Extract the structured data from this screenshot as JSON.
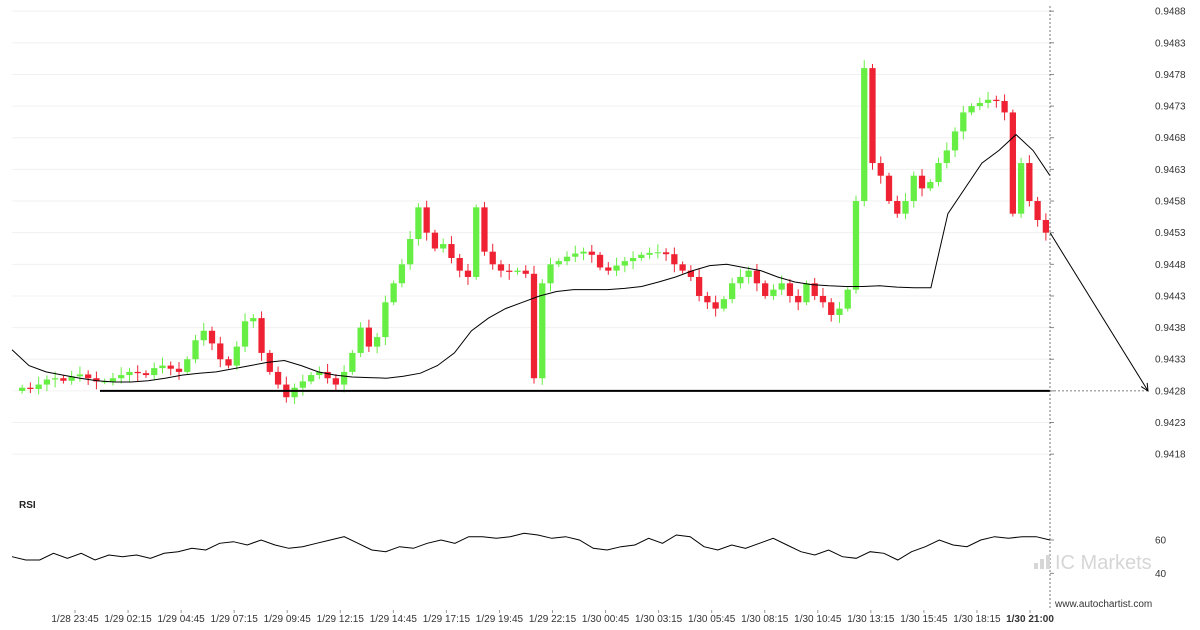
{
  "chart_data": [
    {
      "type": "candlestick",
      "title": "",
      "ylim": [
        0.94155,
        0.94885
      ],
      "y_ticks": [
        "0.9488",
        "0.9483",
        "0.9478",
        "0.9473",
        "0.9468",
        "0.9463",
        "0.9458",
        "0.9453",
        "0.9448",
        "0.9443",
        "0.9438",
        "0.9433",
        "0.9428",
        "0.9423",
        "0.9418"
      ],
      "x_ticks": [
        "1/28 23:45",
        "1/29 02:15",
        "1/29 04:45",
        "1/29 07:15",
        "1/29 09:45",
        "1/29 12:15",
        "1/29 14:45",
        "1/29 17:15",
        "1/29 19:45",
        "1/29 22:15",
        "1/30 00:45",
        "1/30 03:15",
        "1/30 05:45",
        "1/30 08:15",
        "1/30 10:45",
        "1/30 13:15",
        "1/30 15:45",
        "1/30 18:15",
        "1/30 21:00"
      ],
      "series": [
        {
          "kind": "close",
          "values": [
            0.94285,
            0.94283,
            0.9429,
            0.94298,
            0.943,
            0.94296,
            0.94303,
            0.94306,
            0.943,
            0.94295,
            0.94295,
            0.943,
            0.94305,
            0.9431,
            0.94308,
            0.94305,
            0.94316,
            0.9432,
            0.94315,
            0.9431,
            0.9433,
            0.9436,
            0.94375,
            0.94355,
            0.9433,
            0.9432,
            0.9435,
            0.9439,
            0.94395,
            0.9434,
            0.9431,
            0.9429,
            0.9427,
            0.94285,
            0.94295,
            0.94305,
            0.9431,
            0.943,
            0.9429,
            0.9431,
            0.9434,
            0.9438,
            0.9435,
            0.94365,
            0.9442,
            0.9445,
            0.9448,
            0.9452,
            0.9457,
            0.9453,
            0.94505,
            0.94512,
            0.9449,
            0.9447,
            0.9446,
            0.9457,
            0.945,
            0.9448,
            0.9447,
            0.94468,
            0.9447,
            0.94465,
            0.943,
            0.9445,
            0.9448,
            0.94485,
            0.94492,
            0.94497,
            0.945,
            0.94495,
            0.94475,
            0.9447,
            0.94478,
            0.94485,
            0.9449,
            0.94495,
            0.94498,
            0.94499,
            0.94496,
            0.9448,
            0.9447,
            0.9446,
            0.9443,
            0.9442,
            0.9441,
            0.94425,
            0.9445,
            0.9446,
            0.9447,
            0.9445,
            0.9443,
            0.9444,
            0.9445,
            0.9443,
            0.9442,
            0.9445,
            0.9443,
            0.9442,
            0.944,
            0.9441,
            0.9444,
            0.9458,
            0.9479,
            0.9464,
            0.9462,
            0.9458,
            0.9456,
            0.9458,
            0.9462,
            0.946,
            0.9461,
            0.9464,
            0.9466,
            0.9469,
            0.9472,
            0.9473,
            0.94735,
            0.9474,
            0.94738,
            0.9472,
            0.9456,
            0.9464,
            0.9458,
            0.9455,
            0.9453
          ]
        },
        {
          "kind": "moving_average",
          "values": [
            0.94345,
            0.9432,
            0.9431,
            0.94305,
            0.943,
            0.94296,
            0.94294,
            0.94294,
            0.94296,
            0.943,
            0.94305,
            0.94308,
            0.9431,
            0.94315,
            0.9432,
            0.94325,
            0.94328,
            0.9432,
            0.9431,
            0.94305,
            0.94302,
            0.94301,
            0.943,
            0.94303,
            0.94308,
            0.9432,
            0.9434,
            0.94375,
            0.94395,
            0.9441,
            0.9442,
            0.9443,
            0.94437,
            0.9444,
            0.9444,
            0.9444,
            0.94442,
            0.94445,
            0.94452,
            0.9446,
            0.9447,
            0.94478,
            0.9448,
            0.94475,
            0.9447,
            0.9446,
            0.94452,
            0.94448,
            0.94446,
            0.94445,
            0.94445,
            0.94446,
            0.94444,
            0.94443,
            0.94443,
            0.9456,
            0.946,
            0.9464,
            0.9466,
            0.94685,
            0.9466,
            0.9462
          ]
        }
      ],
      "support_level": 0.9428,
      "forecast": {
        "from": 0.9453,
        "to": 0.9428
      },
      "colors": {
        "up": "#66ee44",
        "down": "#ee2233",
        "ma": "#000000",
        "support": "#000000"
      }
    },
    {
      "type": "line",
      "title": "RSI",
      "y_ticks": [
        "60",
        "40"
      ],
      "ylim": [
        30,
        75
      ],
      "values": [
        50,
        48,
        48,
        52,
        49,
        52,
        48,
        51,
        50,
        51,
        49,
        52,
        53,
        55,
        54,
        58,
        59,
        57,
        60,
        57,
        55,
        56,
        58,
        60,
        62,
        58,
        54,
        53,
        56,
        55,
        58,
        60,
        58,
        62,
        62,
        61,
        62,
        64,
        63,
        61,
        62,
        60,
        55,
        54,
        56,
        57,
        61,
        58,
        63,
        62,
        56,
        54,
        57,
        55,
        58,
        61,
        57,
        53,
        51,
        54,
        50,
        49,
        53,
        52,
        48,
        53,
        56,
        60,
        57,
        56,
        60,
        62,
        61,
        62,
        62,
        60
      ]
    }
  ],
  "rsi_label": "RSI",
  "credit": "www.autochartist.com",
  "brand": "IC Markets"
}
